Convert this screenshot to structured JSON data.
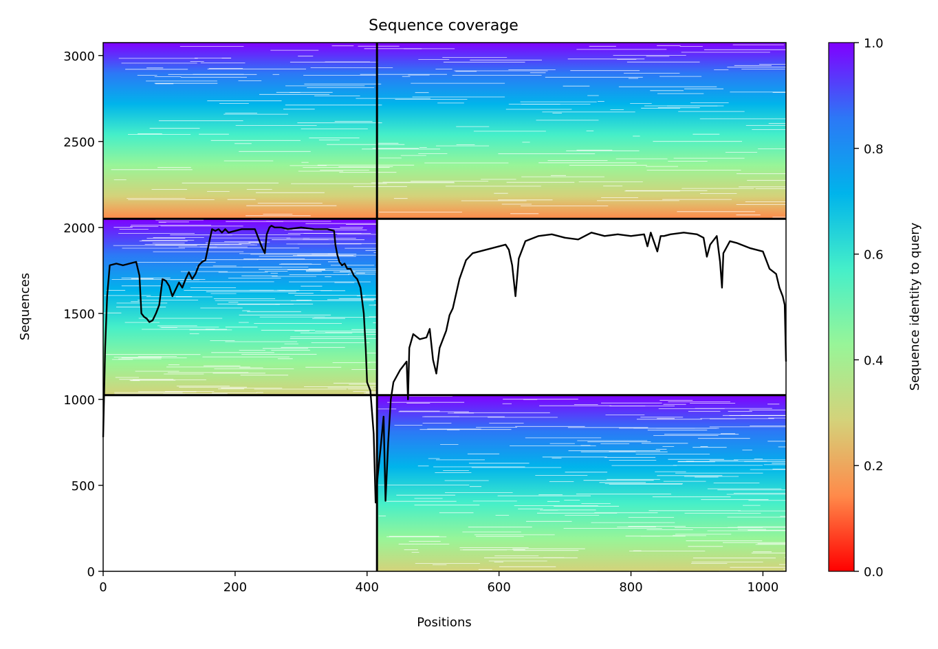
{
  "chart_data": {
    "type": "heatmap",
    "title": "Sequence coverage",
    "xlabel": "Positions",
    "ylabel": "Sequences",
    "xlim": [
      0,
      1035
    ],
    "ylim": [
      0,
      3075
    ],
    "x_ticks": [
      0,
      200,
      400,
      600,
      800,
      1000
    ],
    "y_ticks": [
      0,
      500,
      1000,
      1500,
      2000,
      2500,
      3000
    ],
    "colorbar": {
      "label": "Sequence identity to query",
      "colormap": [
        "#ff0000",
        "#ff8a4a",
        "#d4d27a",
        "#98f598",
        "#45efc9",
        "#00b4eb",
        "#2c78f6",
        "#8000ff"
      ],
      "range": [
        0,
        1
      ],
      "ticks": [
        "0.0",
        "0.2",
        "0.4",
        "0.6",
        "0.8",
        "1.0"
      ]
    },
    "chain_break_x": 415,
    "block_boundaries_y": [
      1025,
      2050
    ],
    "blocks": [
      {
        "name": "block-bottom",
        "x_range": [
          415,
          1035
        ],
        "y_range": [
          0,
          1025
        ],
        "identity_bottom": 0.3,
        "identity_top": 1.0
      },
      {
        "name": "block-middle-left",
        "x_range": [
          0,
          415
        ],
        "y_range": [
          1025,
          2050
        ],
        "identity_bottom": 0.3,
        "identity_top": 1.0
      },
      {
        "name": "block-top",
        "x_range": [
          0,
          1035
        ],
        "y_range": [
          2050,
          3075
        ],
        "identity_bottom": 0.18,
        "identity_top": 1.0
      }
    ],
    "coverage_line": {
      "name": "coverage",
      "color": "#000000",
      "x": [
        0,
        3,
        6,
        10,
        20,
        30,
        40,
        50,
        55,
        58,
        62,
        66,
        70,
        75,
        80,
        85,
        90,
        95,
        100,
        105,
        110,
        115,
        120,
        125,
        130,
        135,
        140,
        145,
        150,
        155,
        160,
        165,
        170,
        175,
        180,
        185,
        190,
        200,
        210,
        220,
        230,
        240,
        245,
        248,
        252,
        255,
        260,
        270,
        280,
        300,
        320,
        340,
        350,
        352,
        355,
        358,
        362,
        366,
        370,
        375,
        380,
        385,
        390,
        395,
        398,
        400,
        405,
        410,
        413,
        416,
        420,
        425,
        428,
        432,
        436,
        440,
        450,
        460,
        462,
        464,
        470,
        480,
        490,
        495,
        500,
        505,
        510,
        520,
        525,
        530,
        540,
        550,
        560,
        580,
        600,
        610,
        615,
        620,
        625,
        630,
        640,
        660,
        680,
        700,
        720,
        740,
        760,
        780,
        800,
        820,
        825,
        830,
        840,
        845,
        850,
        860,
        880,
        900,
        910,
        915,
        920,
        930,
        935,
        938,
        940,
        950,
        960,
        980,
        1000,
        1010,
        1020,
        1025,
        1030,
        1033,
        1035
      ],
      "y": [
        780,
        1300,
        1600,
        1780,
        1790,
        1780,
        1790,
        1800,
        1720,
        1500,
        1480,
        1470,
        1450,
        1460,
        1500,
        1550,
        1700,
        1690,
        1660,
        1600,
        1640,
        1680,
        1650,
        1700,
        1740,
        1700,
        1730,
        1780,
        1800,
        1810,
        1900,
        1990,
        1980,
        1990,
        1970,
        1990,
        1970,
        1980,
        1990,
        1990,
        1990,
        1890,
        1850,
        1960,
        2000,
        2010,
        2000,
        2000,
        1990,
        2000,
        1990,
        1990,
        1980,
        1900,
        1840,
        1800,
        1780,
        1790,
        1760,
        1760,
        1720,
        1700,
        1650,
        1500,
        1300,
        1100,
        1050,
        800,
        400,
        550,
        700,
        900,
        410,
        750,
        1000,
        1100,
        1170,
        1220,
        1000,
        1300,
        1380,
        1350,
        1360,
        1410,
        1230,
        1150,
        1300,
        1400,
        1490,
        1530,
        1700,
        1810,
        1850,
        1870,
        1890,
        1900,
        1870,
        1780,
        1600,
        1820,
        1920,
        1950,
        1960,
        1940,
        1930,
        1970,
        1950,
        1960,
        1950,
        1960,
        1890,
        1970,
        1860,
        1950,
        1950,
        1960,
        1970,
        1960,
        1940,
        1830,
        1900,
        1950,
        1800,
        1650,
        1850,
        1920,
        1910,
        1880,
        1860,
        1760,
        1730,
        1650,
        1600,
        1550,
        1220
      ]
    }
  }
}
